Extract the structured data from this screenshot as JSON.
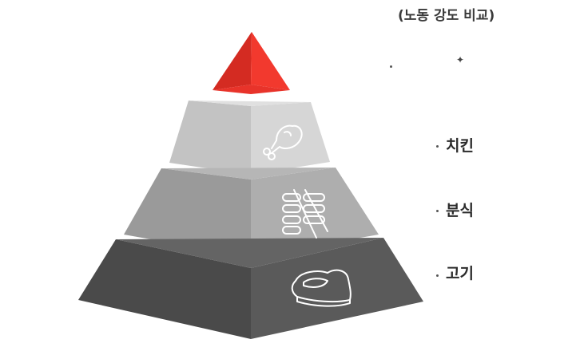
{
  "diagram": {
    "subtitle": "(노동 강도 비교)",
    "tiers": [
      {
        "label": "",
        "color": "#e8332a",
        "icon": "none"
      },
      {
        "label": "치킨",
        "color": "#c8c8c8",
        "icon": "chicken-drumstick-icon"
      },
      {
        "label": "분식",
        "color": "#a2a2a2",
        "icon": "sausage-skewer-icon"
      },
      {
        "label": "고기",
        "color": "#555555",
        "icon": "steak-icon"
      }
    ]
  }
}
